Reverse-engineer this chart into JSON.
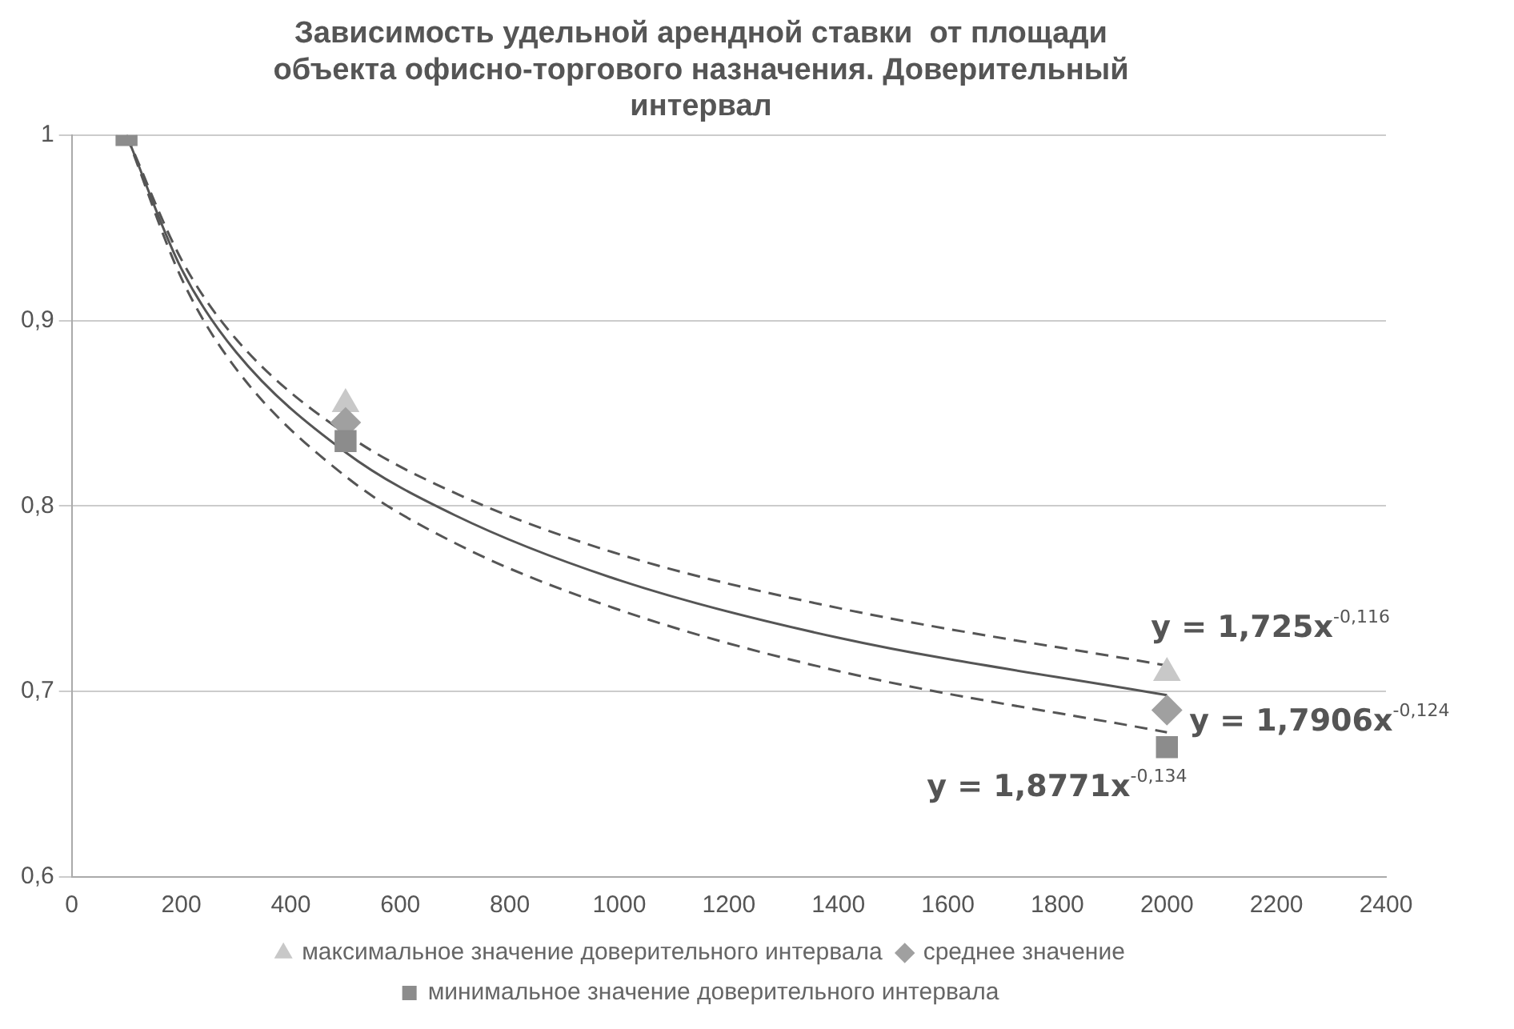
{
  "chart_data": {
    "type": "scatter",
    "title": "Зависимость удельной арендной ставки  от площади объекта офисно-торгового назначения. Доверительный интервал",
    "xlim": [
      0,
      2400
    ],
    "xticks": [
      0,
      200,
      400,
      600,
      800,
      1000,
      1200,
      1400,
      1600,
      1800,
      2000,
      2200,
      2400
    ],
    "ylim": [
      0.6,
      1
    ],
    "yticks": [
      {
        "value": 0.6,
        "label": "0,6"
      },
      {
        "value": 0.7,
        "label": "0,7"
      },
      {
        "value": 0.8,
        "label": "0,8"
      },
      {
        "value": 0.9,
        "label": "0,9"
      },
      {
        "value": 1,
        "label": "1"
      }
    ],
    "grid": "y",
    "legend": "bottom",
    "series": [
      {
        "name": "максимальное значение доверительного интервала",
        "type": "scatter",
        "marker": "triangle",
        "color": "#c8c8c8",
        "x": [
          500,
          2000
        ],
        "values": [
          0.855,
          0.71
        ]
      },
      {
        "name": "среднее значение",
        "type": "scatter",
        "marker": "diamond",
        "color": "#a0a0a0",
        "x": [
          500,
          2000
        ],
        "values": [
          0.845,
          0.69
        ]
      },
      {
        "name": "минимальное значение доверительного интервала",
        "type": "scatter",
        "marker": "square",
        "color": "#8c8c8c",
        "x": [
          100,
          500,
          2000
        ],
        "values": [
          1,
          0.835,
          0.67
        ]
      },
      {
        "type": "line",
        "marker": "none",
        "line_style": "dashed",
        "color": "#555555",
        "x": [
          100,
          200,
          300,
          500,
          700,
          1000,
          1400,
          2000
        ],
        "values": [
          1,
          0.933,
          0.89,
          0.839,
          0.807,
          0.774,
          0.745,
          0.714
        ]
      },
      {
        "type": "line",
        "marker": "none",
        "line_style": "solid",
        "color": "#555555",
        "x": [
          100,
          200,
          300,
          500,
          700,
          1000,
          1400,
          2000
        ],
        "values": [
          1,
          0.928,
          0.883,
          0.829,
          0.795,
          0.76,
          0.729,
          0.698
        ]
      },
      {
        "type": "line",
        "marker": "none",
        "line_style": "dashed",
        "color": "#555555",
        "x": [
          100,
          200,
          300,
          500,
          700,
          1000,
          1400,
          2000
        ],
        "values": [
          1,
          0.923,
          0.874,
          0.816,
          0.78,
          0.744,
          0.711,
          0.678
        ]
      }
    ],
    "annotations": [
      "y = 1,725x$^{-0,116}$",
      "y = 1,7906x$^{-0,124}$",
      "y = 1,8771x$^{-0,134}$"
    ]
  }
}
